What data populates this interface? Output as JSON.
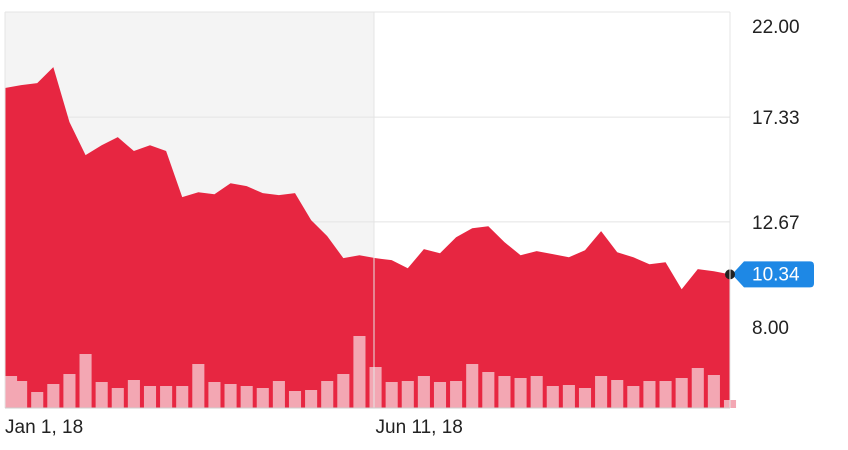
{
  "chart_data": {
    "type": "area",
    "categories": [
      "Jan 1, 18",
      null,
      null,
      null,
      null,
      null,
      null,
      null,
      null,
      null,
      null,
      null,
      null,
      null,
      null,
      null,
      null,
      null,
      null,
      null,
      null,
      null,
      null,
      "Jun 11, 18",
      null,
      null,
      null,
      null,
      null,
      null,
      null,
      null,
      null,
      null,
      null,
      null,
      null,
      null,
      null,
      null,
      null,
      null,
      null,
      null,
      null,
      null
    ],
    "series": [
      {
        "color": "#e61f3b",
        "values": [
          18.62,
          18.75,
          18.84,
          19.55,
          17.11,
          15.64,
          16.08,
          16.44,
          15.82,
          16.08,
          15.82,
          13.77,
          13.99,
          13.9,
          14.39,
          14.26,
          13.95,
          13.86,
          13.95,
          12.75,
          12.04,
          11.06,
          11.19,
          11.06,
          10.97,
          10.61,
          11.46,
          11.28,
          11.99,
          12.39,
          12.48,
          11.77,
          11.19,
          11.37,
          11.24,
          11.1,
          11.41,
          12.26,
          11.32,
          11.1,
          10.79,
          10.88,
          9.68,
          10.57,
          10.48,
          10.34
        ]
      }
    ],
    "volume": {
      "color": "#f3a7b3",
      "values": [
        32,
        27,
        16,
        24,
        34,
        54,
        26,
        20,
        28,
        22,
        22,
        22,
        44,
        26,
        24,
        22,
        20,
        27,
        17,
        18,
        27,
        34,
        72,
        41,
        26,
        27,
        32,
        26,
        27,
        44,
        36,
        32,
        30,
        32,
        22,
        23,
        20,
        32,
        28,
        22,
        27,
        27,
        30,
        40,
        33,
        8
      ]
    },
    "ylim": [
      4.4,
      22
    ],
    "yticks": [
      {
        "value": 22,
        "label": "22.00"
      },
      17.33,
      12.67,
      {
        "value": 8,
        "label": "8.00"
      }
    ],
    "grid": true,
    "last_value_color": "#1e88e5"
  }
}
